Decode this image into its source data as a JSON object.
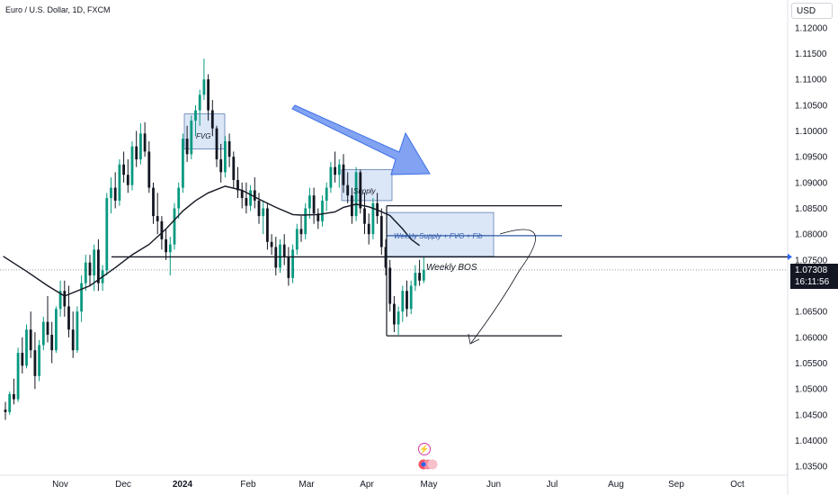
{
  "header": {
    "symbol_title": "Euro / U.S. Dollar, 1D, FXCM",
    "currency_label": "USD"
  },
  "price_tag": {
    "price": "1.07308",
    "countdown": "16:11:56"
  },
  "icons": {
    "flash": "lightning-icon",
    "events": "economic-events-icon"
  },
  "colors": {
    "up": "#089981",
    "down": "#131722",
    "ma": "#131722",
    "zone_fill": "#dbe6f7",
    "zone_stroke": "#4a6fa8",
    "arrow": "#6c93f0",
    "fib_line": "#2f5aa8"
  },
  "chart_data": {
    "type": "candlestick",
    "x_ticks": [
      "Nov",
      "Dec",
      "2024",
      "Feb",
      "Mar",
      "Apr",
      "May",
      "Jun",
      "Jul",
      "Aug",
      "Sep",
      "Oct"
    ],
    "y_ticks": [
      "1.12000",
      "1.11500",
      "1.11000",
      "1.10500",
      "1.10000",
      "1.09500",
      "1.09000",
      "1.08500",
      "1.08000",
      "1.07500",
      "1.07000",
      "1.06500",
      "1.06000",
      "1.05500",
      "1.05000",
      "1.04500",
      "1.04000",
      "1.03500"
    ],
    "ylim": [
      1.033,
      1.123
    ],
    "annotations": {
      "fvg": "FVG",
      "supply": "Supply",
      "weekly_zone": "Weekly Supply + FVG + Fib",
      "bos": "Weekly BOS"
    },
    "levels": {
      "bos": 1.0756,
      "current": 1.07308,
      "zone_top": 1.0855,
      "zone_mid": 1.0797,
      "target": 1.0603
    },
    "zones": {
      "fvg": [
        1.1033,
        1.0965
      ],
      "supply": [
        1.0925,
        1.0865
      ],
      "weekly": [
        1.0842,
        1.0757
      ]
    },
    "moving_average": [
      [
        -0.5,
        1.0757
      ],
      [
        5,
        1.0728
      ],
      [
        10,
        1.07
      ],
      [
        14,
        1.068
      ],
      [
        20,
        1.07
      ],
      [
        26,
        1.0735
      ],
      [
        30,
        1.076
      ],
      [
        34,
        1.078
      ],
      [
        38,
        1.081
      ],
      [
        42,
        1.0845
      ],
      [
        45,
        1.0865
      ],
      [
        48,
        1.088
      ],
      [
        52,
        1.0893
      ],
      [
        56,
        1.0885
      ],
      [
        60,
        1.0868
      ],
      [
        64,
        1.0852
      ],
      [
        68,
        1.0838
      ],
      [
        70,
        1.0837
      ],
      [
        74,
        1.0838
      ],
      [
        78,
        1.0843
      ],
      [
        80,
        1.0852
      ],
      [
        83,
        1.0858
      ],
      [
        86,
        1.0853
      ],
      [
        88,
        1.0847
      ],
      [
        91,
        1.0836
      ],
      [
        94,
        1.081
      ],
      [
        96,
        1.079
      ],
      [
        98,
        1.0778
      ]
    ],
    "candles": [
      [
        1.046,
        1.0475,
        1.044,
        1.0455
      ],
      [
        1.0455,
        1.0495,
        1.045,
        1.049
      ],
      [
        1.049,
        1.052,
        1.047,
        1.048
      ],
      [
        1.048,
        1.058,
        1.0475,
        1.057
      ],
      [
        1.057,
        1.06,
        1.053,
        1.0545
      ],
      [
        1.0545,
        1.0625,
        1.054,
        1.0615
      ],
      [
        1.0615,
        1.065,
        1.056,
        1.0575
      ],
      [
        1.0575,
        1.061,
        1.05,
        1.0525
      ],
      [
        1.0525,
        1.0595,
        1.0515,
        1.0585
      ],
      [
        1.0585,
        1.064,
        1.0575,
        1.063
      ],
      [
        1.063,
        1.068,
        1.059,
        1.0605
      ],
      [
        1.0605,
        1.063,
        1.055,
        1.0575
      ],
      [
        1.0575,
        1.066,
        1.057,
        1.0655
      ],
      [
        1.0655,
        1.071,
        1.064,
        1.069
      ],
      [
        1.069,
        1.071,
        1.064,
        1.066
      ],
      [
        1.066,
        1.07,
        1.06,
        1.0615
      ],
      [
        1.0615,
        1.065,
        1.056,
        1.0575
      ],
      [
        1.0575,
        1.066,
        1.057,
        1.065
      ],
      [
        1.065,
        1.072,
        1.063,
        1.0705
      ],
      [
        1.0705,
        1.076,
        1.069,
        1.0745
      ],
      [
        1.0745,
        1.076,
        1.07,
        1.072
      ],
      [
        1.072,
        1.078,
        1.069,
        1.077
      ],
      [
        1.077,
        1.079,
        1.069,
        1.0705
      ],
      [
        1.0705,
        1.074,
        1.069,
        1.073
      ],
      [
        1.073,
        1.088,
        1.072,
        1.087
      ],
      [
        1.087,
        1.091,
        1.084,
        1.089
      ],
      [
        1.089,
        1.092,
        1.085,
        1.0865
      ],
      [
        1.0865,
        1.0945,
        1.0855,
        1.0935
      ],
      [
        1.0935,
        1.096,
        1.09,
        1.0915
      ],
      [
        1.0915,
        1.0945,
        1.088,
        1.0895
      ],
      [
        1.0895,
        1.098,
        1.0885,
        1.097
      ],
      [
        1.097,
        1.1,
        1.093,
        1.0945
      ],
      [
        1.0945,
        1.1015,
        1.0935,
        1.0995
      ],
      [
        1.0995,
        1.1017,
        1.095,
        1.096
      ],
      [
        1.096,
        1.098,
        1.088,
        1.089
      ],
      [
        1.089,
        1.09,
        1.082,
        1.0835
      ],
      [
        1.0835,
        1.088,
        1.08,
        1.0825
      ],
      [
        1.0825,
        1.0835,
        1.077,
        1.079
      ],
      [
        1.079,
        1.081,
        1.075,
        1.0765
      ],
      [
        1.0765,
        1.0795,
        1.072,
        1.078
      ],
      [
        1.078,
        1.086,
        1.077,
        1.085
      ],
      [
        1.085,
        1.09,
        1.083,
        1.089
      ],
      [
        1.089,
        1.0995,
        1.088,
        1.0985
      ],
      [
        1.0985,
        1.101,
        1.094,
        1.0955
      ],
      [
        1.0955,
        1.103,
        1.0945,
        1.102
      ],
      [
        1.102,
        1.105,
        1.099,
        1.104
      ],
      [
        1.104,
        1.108,
        1.101,
        1.107
      ],
      [
        1.107,
        1.114,
        1.106,
        1.11
      ],
      [
        1.11,
        1.111,
        1.102,
        1.104
      ],
      [
        1.104,
        1.106,
        1.099,
        1.1005
      ],
      [
        1.1005,
        1.101,
        1.093,
        1.0945
      ],
      [
        1.0945,
        1.0975,
        1.09,
        1.092
      ],
      [
        1.092,
        1.099,
        1.091,
        1.098
      ],
      [
        1.098,
        1.0995,
        1.093,
        1.095
      ],
      [
        1.095,
        1.096,
        1.089,
        1.0905
      ],
      [
        1.0905,
        1.093,
        1.087,
        1.0885
      ],
      [
        1.0885,
        1.09,
        1.085,
        1.087
      ],
      [
        1.087,
        1.09,
        1.084,
        1.0855
      ],
      [
        1.0855,
        1.0895,
        1.0845,
        1.0885
      ],
      [
        1.0885,
        1.091,
        1.085,
        1.0865
      ],
      [
        1.0865,
        1.088,
        1.082,
        1.0835
      ],
      [
        1.0835,
        1.0865,
        1.08,
        1.085
      ],
      [
        1.085,
        1.086,
        1.077,
        1.0785
      ],
      [
        1.0785,
        1.08,
        1.076,
        1.0775
      ],
      [
        1.0775,
        1.0795,
        1.072,
        1.0735
      ],
      [
        1.0735,
        1.079,
        1.0725,
        1.078
      ],
      [
        1.078,
        1.08,
        1.074,
        1.0755
      ],
      [
        1.0755,
        1.0775,
        1.07,
        1.0715
      ],
      [
        1.0715,
        1.078,
        1.0705,
        1.077
      ],
      [
        1.077,
        1.082,
        1.076,
        1.081
      ],
      [
        1.081,
        1.0835,
        1.0785,
        1.08
      ],
      [
        1.08,
        1.086,
        1.079,
        1.085
      ],
      [
        1.085,
        1.089,
        1.083,
        1.0875
      ],
      [
        1.0875,
        1.089,
        1.082,
        1.084
      ],
      [
        1.084,
        1.085,
        1.081,
        1.0825
      ],
      [
        1.0825,
        1.0875,
        1.0815,
        1.0865
      ],
      [
        1.0865,
        1.09,
        1.0845,
        1.089
      ],
      [
        1.089,
        1.094,
        1.088,
        1.093
      ],
      [
        1.093,
        1.096,
        1.09,
        1.0915
      ],
      [
        1.0915,
        1.0945,
        1.089,
        1.0935
      ],
      [
        1.0935,
        1.0955,
        1.088,
        1.0895
      ],
      [
        1.0895,
        1.092,
        1.086,
        1.0875
      ],
      [
        1.0875,
        1.089,
        1.082,
        1.0835
      ],
      [
        1.0835,
        1.093,
        1.0825,
        1.092
      ],
      [
        1.092,
        1.0925,
        1.084,
        1.085
      ],
      [
        1.085,
        1.088,
        1.08,
        1.082
      ],
      [
        1.082,
        1.084,
        1.078,
        1.08
      ],
      [
        1.08,
        1.087,
        1.079,
        1.086
      ],
      [
        1.086,
        1.088,
        1.082,
        1.0835
      ],
      [
        1.0835,
        1.085,
        1.076,
        1.0775
      ],
      [
        1.0775,
        1.079,
        1.072,
        1.0735
      ],
      [
        1.0735,
        1.075,
        1.065,
        1.0665
      ],
      [
        1.0665,
        1.068,
        1.061,
        1.0625
      ],
      [
        1.0625,
        1.066,
        1.0605,
        1.065
      ],
      [
        1.065,
        1.07,
        1.063,
        1.069
      ],
      [
        1.069,
        1.071,
        1.064,
        1.0655
      ],
      [
        1.0655,
        1.071,
        1.0645,
        1.07
      ],
      [
        1.07,
        1.074,
        1.069,
        1.0725
      ],
      [
        1.0725,
        1.075,
        1.07,
        1.071
      ],
      [
        1.071,
        1.0755,
        1.0705,
        1.0731
      ]
    ]
  }
}
